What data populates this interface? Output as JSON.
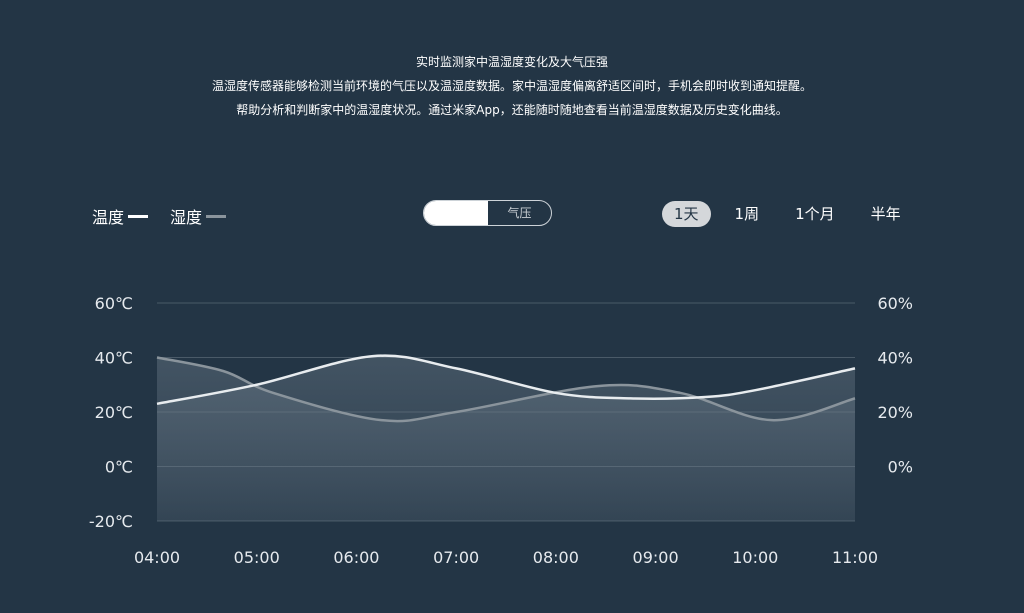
{
  "intro": {
    "title": "实时监测家中温湿度变化及大气压强",
    "line1": "温湿度传感器能够检测当前环境的气压以及温湿度数据。家中温湿度偏离舒适区间时，手机会即时收到通知提醒。",
    "line2": "帮助分析和判断家中的温湿度状况。通过米家App，还能随时随地查看当前温湿度数据及历史变化曲线。"
  },
  "legend": [
    {
      "label": "温度",
      "color": "#ffffff"
    },
    {
      "label": "湿度",
      "color": "#8a949c"
    }
  ],
  "toggle": {
    "active": "",
    "inactive": "气压"
  },
  "ranges": [
    {
      "label": "1天",
      "active": true
    },
    {
      "label": "1周",
      "active": false
    },
    {
      "label": "1个月",
      "active": false
    },
    {
      "label": "半年",
      "active": false
    }
  ],
  "colors": {
    "background": "#233545",
    "temperature": "#e8ecef",
    "humidity": "#8a949c",
    "grid": "#4a5a68"
  },
  "chart_data": {
    "type": "line",
    "x_ticks": [
      "04:00",
      "05:00",
      "06:00",
      "07:00",
      "08:00",
      "09:00",
      "10:00",
      "11:00"
    ],
    "y_left": {
      "ticks": [
        "60℃",
        "40℃",
        "20℃",
        "0℃",
        "-20℃"
      ],
      "range": [
        -20,
        60
      ],
      "unit": "℃"
    },
    "y_right": {
      "ticks": [
        "60%",
        "40%",
        "20%",
        "0%"
      ],
      "range": [
        -20,
        60
      ],
      "unit": "%"
    },
    "grid": true,
    "series": [
      {
        "name": "温度",
        "axis": "left",
        "x": [
          "04:00",
          "05:00",
          "06:10",
          "07:00",
          "08:00",
          "08:45",
          "09:30",
          "10:00",
          "11:00"
        ],
        "y": [
          23,
          30,
          40.5,
          36,
          27,
          25,
          25.5,
          28,
          36
        ]
      },
      {
        "name": "湿度",
        "axis": "right",
        "x": [
          "04:00",
          "04:40",
          "05:10",
          "06:15",
          "07:00",
          "08:25",
          "09:15",
          "10:10",
          "11:00"
        ],
        "y": [
          40,
          35,
          27,
          17,
          20,
          29.5,
          27,
          17,
          25
        ]
      }
    ]
  }
}
